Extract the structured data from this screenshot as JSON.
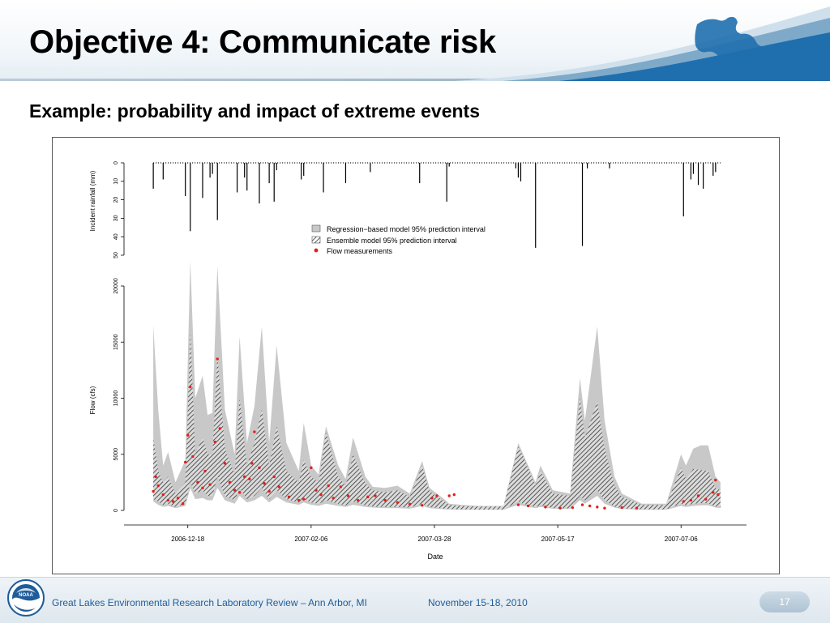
{
  "slide": {
    "title": "Objective 4: Communicate risk",
    "subtitle": "Example: probability and impact of extreme events",
    "footer_left": "Great Lakes Environmental Research Laboratory Review – Ann Arbor, MI",
    "footer_date": "November 15-18, 2010",
    "page_number": "17",
    "logo_text": "NOAA",
    "logo_icon": "noaa-emblem-icon",
    "map_icon": "great-lakes-map-icon",
    "colors": {
      "title": "#000000",
      "footer_text": "#1f5c9a",
      "regression_band": "#c8c8c8",
      "ensemble_hatch": "#333333",
      "flow_points": "#e0201a",
      "rain_bars": "#000000",
      "wave_blue": "#1f6fae"
    }
  },
  "chart_data": [
    {
      "type": "bar",
      "panel": "rainfall",
      "ylabel": "Incident rainfall (mm)",
      "ylim": [
        0,
        50
      ],
      "y_reversed": true,
      "yticks": [
        "0",
        "10",
        "20",
        "30",
        "40",
        "50"
      ],
      "x": [
        "2006-12-04",
        "2006-12-08",
        "2006-12-17",
        "2006-12-19",
        "2006-12-24",
        "2006-12-27",
        "2006-12-28",
        "2006-12-30",
        "2007-01-07",
        "2007-01-10",
        "2007-01-11",
        "2007-01-16",
        "2007-01-20",
        "2007-01-22",
        "2007-01-23",
        "2007-02-02",
        "2007-02-03",
        "2007-02-11",
        "2007-02-20",
        "2007-03-02",
        "2007-03-22",
        "2007-04-02",
        "2007-04-03",
        "2007-04-30",
        "2007-05-01",
        "2007-05-02",
        "2007-05-08",
        "2007-05-27",
        "2007-05-29",
        "2007-06-07",
        "2007-07-07",
        "2007-07-10",
        "2007-07-11",
        "2007-07-13",
        "2007-07-15",
        "2007-07-19",
        "2007-07-20"
      ],
      "values": [
        14,
        9,
        18,
        37,
        19,
        8,
        6,
        31,
        16,
        8,
        15,
        22,
        11,
        21,
        4,
        9,
        7,
        16,
        11,
        5,
        11,
        21,
        2,
        3,
        8,
        10,
        46,
        45,
        3,
        3,
        29,
        9,
        6,
        12,
        14,
        7,
        5
      ]
    },
    {
      "type": "area",
      "panel": "flow",
      "xlabel": "Date",
      "ylabel": "Flow (cfs)",
      "ylim": [
        0,
        20000
      ],
      "yticks": [
        "0",
        "5000",
        "10000",
        "15000",
        "20000"
      ],
      "xticks": [
        "2006-12-18",
        "2007-02-06",
        "2007-03-28",
        "2007-05-17",
        "2007-07-06"
      ],
      "legend": [
        "Regression−based model 95% prediction interval",
        "Ensemble model 95% prediction interval",
        "Flow measurements"
      ],
      "legend_position": "top-center",
      "x": [
        "2006-12-04",
        "2006-12-06",
        "2006-12-08",
        "2006-12-10",
        "2006-12-13",
        "2006-12-17",
        "2006-12-19",
        "2006-12-21",
        "2006-12-24",
        "2006-12-26",
        "2006-12-28",
        "2006-12-30",
        "2007-01-02",
        "2007-01-06",
        "2007-01-08",
        "2007-01-11",
        "2007-01-14",
        "2007-01-17",
        "2007-01-20",
        "2007-01-23",
        "2007-01-27",
        "2007-02-01",
        "2007-02-03",
        "2007-02-06",
        "2007-02-09",
        "2007-02-12",
        "2007-02-17",
        "2007-02-20",
        "2007-02-23",
        "2007-02-28",
        "2007-03-03",
        "2007-03-08",
        "2007-03-13",
        "2007-03-18",
        "2007-03-23",
        "2007-03-26",
        "2007-04-01",
        "2007-04-03",
        "2007-04-08",
        "2007-04-15",
        "2007-04-25",
        "2007-05-01",
        "2007-05-03",
        "2007-05-08",
        "2007-05-10",
        "2007-05-15",
        "2007-05-22",
        "2007-05-26",
        "2007-05-28",
        "2007-06-02",
        "2007-06-05",
        "2007-06-09",
        "2007-06-12",
        "2007-06-20",
        "2007-06-30",
        "2007-07-06",
        "2007-07-08",
        "2007-07-11",
        "2007-07-14",
        "2007-07-17",
        "2007-07-20",
        "2007-07-22"
      ],
      "series": [
        {
          "name": "Regression−based model 95% prediction interval",
          "upper": [
            16500,
            9000,
            4000,
            5200,
            2500,
            4500,
            22300,
            10000,
            12000,
            8500,
            8700,
            21800,
            9000,
            5000,
            15500,
            6000,
            9300,
            16400,
            6000,
            14700,
            6000,
            3500,
            7800,
            4000,
            3200,
            7500,
            4000,
            2800,
            6500,
            3000,
            2100,
            2000,
            2200,
            1500,
            4400,
            2000,
            1000,
            600,
            500,
            400,
            400,
            6000,
            5000,
            2500,
            4000,
            1800,
            1500,
            11800,
            8000,
            16400,
            8000,
            3000,
            1500,
            600,
            600,
            5000,
            4000,
            5500,
            5800,
            5800,
            3000,
            2500
          ],
          "lower": [
            800,
            500,
            300,
            400,
            200,
            400,
            2000,
            1000,
            1100,
            900,
            900,
            2000,
            900,
            600,
            1300,
            700,
            900,
            1300,
            700,
            1200,
            700,
            500,
            700,
            500,
            400,
            600,
            400,
            300,
            500,
            300,
            250,
            200,
            200,
            150,
            400,
            200,
            100,
            80,
            60,
            50,
            50,
            500,
            400,
            200,
            300,
            150,
            120,
            900,
            600,
            1300,
            600,
            250,
            120,
            60,
            60,
            400,
            300,
            400,
            450,
            450,
            250,
            200
          ]
        },
        {
          "name": "Ensemble model 95% prediction interval",
          "upper": [
            6500,
            3500,
            2500,
            3000,
            1500,
            2500,
            16000,
            5000,
            6500,
            5000,
            5000,
            13800,
            5500,
            3200,
            10000,
            4000,
            6000,
            9000,
            4000,
            7500,
            3500,
            2500,
            4500,
            3000,
            2500,
            7000,
            3000,
            2200,
            5000,
            2400,
            1800,
            1600,
            1800,
            1200,
            4000,
            1700,
            800,
            500,
            400,
            350,
            350,
            5700,
            4800,
            2200,
            3500,
            1500,
            1300,
            10000,
            6500,
            9700,
            5500,
            2200,
            1200,
            500,
            500,
            3800,
            2800,
            3700,
            3600,
            3500,
            2000,
            1800
          ],
          "lower": [
            1000,
            800,
            500,
            600,
            300,
            600,
            2500,
            1500,
            1800,
            1300,
            1300,
            3000,
            1300,
            900,
            2000,
            1000,
            1300,
            2000,
            1000,
            1800,
            1000,
            700,
            1000,
            700,
            600,
            900,
            600,
            450,
            800,
            450,
            350,
            300,
            300,
            250,
            600,
            300,
            150,
            120,
            100,
            80,
            80,
            800,
            600,
            300,
            500,
            200,
            180,
            1300,
            900,
            1800,
            900,
            350,
            180,
            100,
            100,
            600,
            450,
            600,
            650,
            650,
            350,
            300
          ]
        },
        {
          "name": "Flow measurements",
          "points": [
            [
              "2006-12-04",
              1700
            ],
            [
              "2006-12-05",
              3000
            ],
            [
              "2006-12-06",
              2200
            ],
            [
              "2006-12-08",
              1400
            ],
            [
              "2006-12-10",
              900
            ],
            [
              "2006-12-12",
              800
            ],
            [
              "2006-12-14",
              1100
            ],
            [
              "2006-12-16",
              600
            ],
            [
              "2006-12-17",
              4300
            ],
            [
              "2006-12-18",
              6700
            ],
            [
              "2006-12-19",
              11000
            ],
            [
              "2006-12-20",
              4800
            ],
            [
              "2006-12-22",
              2500
            ],
            [
              "2006-12-24",
              2000
            ],
            [
              "2006-12-25",
              3500
            ],
            [
              "2006-12-27",
              2300
            ],
            [
              "2006-12-29",
              6100
            ],
            [
              "2006-12-30",
              13500
            ],
            [
              "2006-12-31",
              7300
            ],
            [
              "2007-01-02",
              4200
            ],
            [
              "2007-01-04",
              2500
            ],
            [
              "2007-01-06",
              1800
            ],
            [
              "2007-01-08",
              1600
            ],
            [
              "2007-01-10",
              3000
            ],
            [
              "2007-01-12",
              2800
            ],
            [
              "2007-01-13",
              4200
            ],
            [
              "2007-01-14",
              7000
            ],
            [
              "2007-01-16",
              3800
            ],
            [
              "2007-01-18",
              2400
            ],
            [
              "2007-01-20",
              1700
            ],
            [
              "2007-01-22",
              3000
            ],
            [
              "2007-01-24",
              2100
            ],
            [
              "2007-01-28",
              1200
            ],
            [
              "2007-02-01",
              900
            ],
            [
              "2007-02-03",
              1000
            ],
            [
              "2007-02-06",
              3800
            ],
            [
              "2007-02-08",
              1800
            ],
            [
              "2007-02-10",
              1400
            ],
            [
              "2007-02-13",
              2200
            ],
            [
              "2007-02-15",
              1100
            ],
            [
              "2007-02-18",
              2100
            ],
            [
              "2007-02-21",
              1300
            ],
            [
              "2007-02-25",
              900
            ],
            [
              "2007-03-01",
              1200
            ],
            [
              "2007-03-04",
              1300
            ],
            [
              "2007-03-08",
              900
            ],
            [
              "2007-03-13",
              700
            ],
            [
              "2007-03-18",
              550
            ],
            [
              "2007-03-23",
              450
            ],
            [
              "2007-03-27",
              1100
            ],
            [
              "2007-03-29",
              1300
            ],
            [
              "2007-04-03",
              1300
            ],
            [
              "2007-04-05",
              1400
            ],
            [
              "2007-05-01",
              500
            ],
            [
              "2007-05-05",
              400
            ],
            [
              "2007-05-12",
              300
            ],
            [
              "2007-05-18",
              200
            ],
            [
              "2007-05-23",
              250
            ],
            [
              "2007-05-27",
              500
            ],
            [
              "2007-05-30",
              400
            ],
            [
              "2007-06-02",
              300
            ],
            [
              "2007-06-05",
              200
            ],
            [
              "2007-06-12",
              250
            ],
            [
              "2007-06-18",
              200
            ],
            [
              "2007-07-07",
              800
            ],
            [
              "2007-07-10",
              900
            ],
            [
              "2007-07-13",
              1300
            ],
            [
              "2007-07-16",
              1000
            ],
            [
              "2007-07-19",
              1600
            ],
            [
              "2007-07-20",
              2700
            ],
            [
              "2007-07-21",
              1400
            ]
          ]
        }
      ]
    }
  ]
}
